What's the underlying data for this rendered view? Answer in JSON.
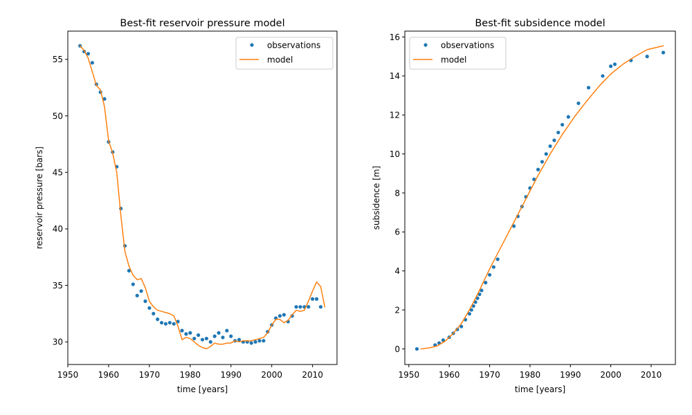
{
  "chart_data": [
    {
      "type": "line",
      "title": "Best-fit reservoir pressure model",
      "xlabel": "time [years]",
      "ylabel": "reservoir pressure [bars]",
      "xlim": [
        1950,
        2016
      ],
      "ylim": [
        28,
        57.5
      ],
      "xticks": [
        "1950",
        "1960",
        "1970",
        "1980",
        "1990",
        "2000",
        "2010"
      ],
      "yticks": [
        "30",
        "35",
        "40",
        "45",
        "50",
        "55"
      ],
      "xtick_values": [
        1950,
        1960,
        1970,
        1980,
        1990,
        2000,
        2010
      ],
      "ytick_values": [
        30,
        35,
        40,
        45,
        50,
        55
      ],
      "legend": "top-right",
      "grid": false,
      "series": [
        {
          "name": "observations",
          "style": "points",
          "color": "#1f77b4",
          "x": [
            1953,
            1954,
            1955,
            1956,
            1957,
            1958,
            1959,
            1960,
            1961,
            1962,
            1963,
            1964,
            1965,
            1966,
            1967,
            1968,
            1969,
            1970,
            1971,
            1972,
            1973,
            1974,
            1975,
            1976,
            1977,
            1978,
            1979,
            1980,
            1981,
            1982,
            1983,
            1984,
            1985,
            1986,
            1987,
            1988,
            1989,
            1990,
            1991,
            1992,
            1993,
            1994,
            1995,
            1996,
            1997,
            1998,
            1999,
            2000,
            2001,
            2002,
            2003,
            2004,
            2005,
            2006,
            2007,
            2008,
            2009,
            2010,
            2011,
            2012
          ],
          "y": [
            56.2,
            55.7,
            55.5,
            54.7,
            52.8,
            52.1,
            51.5,
            47.7,
            46.8,
            45.5,
            41.8,
            38.5,
            36.3,
            35.1,
            34.1,
            34.5,
            33.6,
            33.0,
            32.5,
            32.0,
            31.7,
            31.6,
            31.7,
            31.6,
            31.8,
            31.0,
            30.7,
            30.8,
            30.3,
            30.6,
            30.2,
            30.3,
            30.0,
            30.5,
            30.8,
            30.4,
            31.0,
            30.5,
            30.1,
            30.2,
            30.0,
            30.0,
            29.9,
            30.0,
            30.1,
            30.1,
            30.9,
            31.5,
            32.1,
            32.3,
            32.4,
            31.8,
            32.3,
            33.1,
            33.1,
            33.1,
            33.1,
            33.8,
            33.8,
            33.1
          ]
        },
        {
          "name": "model",
          "style": "line",
          "color": "#ff7f0e",
          "x": [
            1953,
            1954,
            1955,
            1956,
            1957,
            1958,
            1959,
            1960,
            1961,
            1962,
            1963,
            1964,
            1965,
            1966,
            1967,
            1968,
            1969,
            1970,
            1971,
            1972,
            1973,
            1974,
            1975,
            1976,
            1977,
            1978,
            1979,
            1980,
            1981,
            1982,
            1983,
            1984,
            1985,
            1986,
            1987,
            1988,
            1989,
            1990,
            1991,
            1992,
            1993,
            1994,
            1995,
            1996,
            1997,
            1998,
            1999,
            2000,
            2001,
            2002,
            2003,
            2004,
            2005,
            2006,
            2007,
            2008,
            2009,
            2010,
            2011,
            2012,
            2013
          ],
          "y": [
            56.2,
            55.8,
            55.1,
            53.9,
            52.7,
            52.3,
            50.8,
            47.8,
            46.7,
            45.0,
            41.2,
            38.0,
            36.7,
            35.9,
            35.5,
            35.6,
            34.8,
            33.6,
            33.1,
            32.8,
            32.7,
            32.6,
            32.5,
            32.3,
            31.4,
            30.2,
            30.4,
            30.3,
            30.0,
            29.7,
            29.5,
            29.4,
            29.6,
            29.9,
            29.8,
            29.8,
            29.9,
            29.9,
            30.1,
            30.0,
            30.1,
            30.1,
            30.1,
            30.2,
            30.3,
            30.4,
            30.8,
            31.5,
            32.0,
            32.0,
            31.7,
            31.9,
            32.4,
            32.8,
            32.7,
            32.8,
            33.6,
            34.5,
            35.3,
            34.9,
            33.1
          ]
        }
      ]
    },
    {
      "type": "line",
      "title": "Best-fit subsidence model",
      "xlabel": "time [years]",
      "ylabel": "subsidence [m]",
      "xlim": [
        1949,
        2016
      ],
      "ylim": [
        -0.8,
        16.3
      ],
      "xticks": [
        "1950",
        "1960",
        "1970",
        "1980",
        "1990",
        "2000",
        "2010"
      ],
      "yticks": [
        "0",
        "2",
        "4",
        "6",
        "8",
        "10",
        "12",
        "14",
        "16"
      ],
      "xtick_values": [
        1950,
        1960,
        1970,
        1980,
        1990,
        2000,
        2010
      ],
      "ytick_values": [
        0,
        2,
        4,
        6,
        8,
        10,
        12,
        14,
        16
      ],
      "legend": "top-left",
      "grid": false,
      "series": [
        {
          "name": "observations",
          "style": "points",
          "color": "#1f77b4",
          "x": [
            1952,
            1956.5,
            1957.5,
            1958.5,
            1960,
            1961,
            1962,
            1963,
            1964,
            1965,
            1965.5,
            1966,
            1966.5,
            1967,
            1967.5,
            1968,
            1969,
            1970,
            1971,
            1972,
            1976,
            1977,
            1978,
            1979,
            1980,
            1981,
            1982,
            1983,
            1984,
            1985,
            1986,
            1987,
            1988,
            1989.5,
            1992,
            1994.5,
            1998,
            2000,
            2001,
            2005,
            2009,
            2013
          ],
          "y": [
            0.0,
            0.2,
            0.3,
            0.45,
            0.6,
            0.8,
            1.0,
            1.15,
            1.5,
            1.8,
            2.0,
            2.2,
            2.4,
            2.6,
            2.8,
            3.0,
            3.4,
            3.8,
            4.2,
            4.6,
            6.3,
            6.8,
            7.3,
            7.8,
            8.25,
            8.7,
            9.2,
            9.6,
            10.0,
            10.4,
            10.7,
            11.1,
            11.5,
            11.9,
            12.6,
            13.4,
            14.0,
            14.5,
            14.6,
            14.8,
            15.0,
            15.2
          ]
        },
        {
          "name": "model",
          "style": "line",
          "color": "#ff7f0e",
          "x": [
            1953,
            1955,
            1957,
            1959,
            1961,
            1963,
            1965,
            1967,
            1970,
            1973,
            1976,
            1979,
            1982,
            1985,
            1988,
            1991,
            1994,
            1997,
            2000,
            2003,
            2006,
            2009,
            2011,
            2013
          ],
          "y": [
            0.0,
            0.05,
            0.15,
            0.4,
            0.8,
            1.3,
            2.0,
            2.8,
            4.1,
            5.3,
            6.5,
            7.7,
            8.9,
            10.0,
            11.0,
            11.9,
            12.7,
            13.45,
            14.1,
            14.6,
            15.0,
            15.35,
            15.45,
            15.55
          ]
        }
      ]
    }
  ]
}
